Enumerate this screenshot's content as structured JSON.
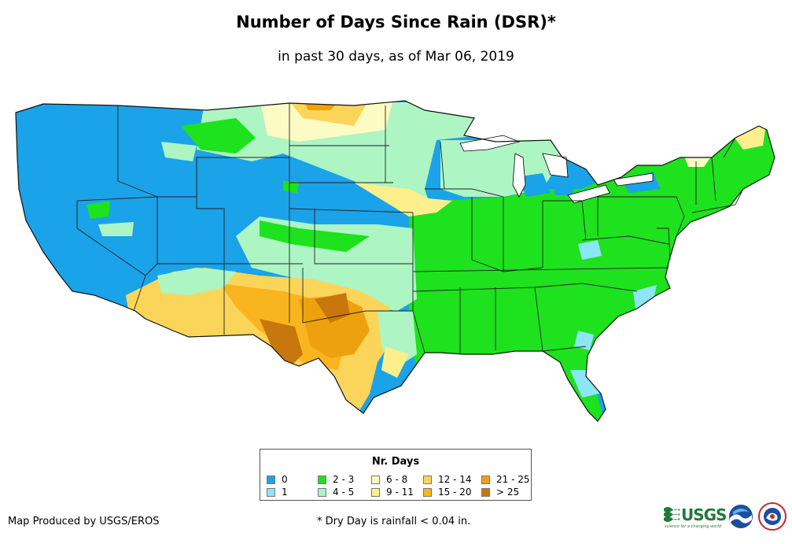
{
  "title": "Number of Days Since Rain (DSR)*",
  "subtitle": "in past 30 days, as of Mar 06, 2019",
  "legend": {
    "title": "Nr. Days",
    "items": [
      {
        "label": "0",
        "color": "#1aa3e8"
      },
      {
        "label": "1",
        "color": "#8de6f5"
      },
      {
        "label": "2 - 3",
        "color": "#1de21d"
      },
      {
        "label": "4 - 5",
        "color": "#adf5c3"
      },
      {
        "label": "6 - 8",
        "color": "#fdfbc4"
      },
      {
        "label": "9 - 11",
        "color": "#fcef8c"
      },
      {
        "label": "12 - 14",
        "color": "#fbd55a"
      },
      {
        "label": "15 - 20",
        "color": "#f9b520"
      },
      {
        "label": "21 - 25",
        "color": "#eea10e"
      },
      {
        "label": "> 25",
        "color": "#c8770c"
      }
    ]
  },
  "credit": "Map Produced by USGS/EROS",
  "footnote": "* Dry Day is rainfall < 0.04 in.",
  "logos": {
    "usgs": "USGS",
    "usgs_tagline": "science for a changing world"
  }
}
